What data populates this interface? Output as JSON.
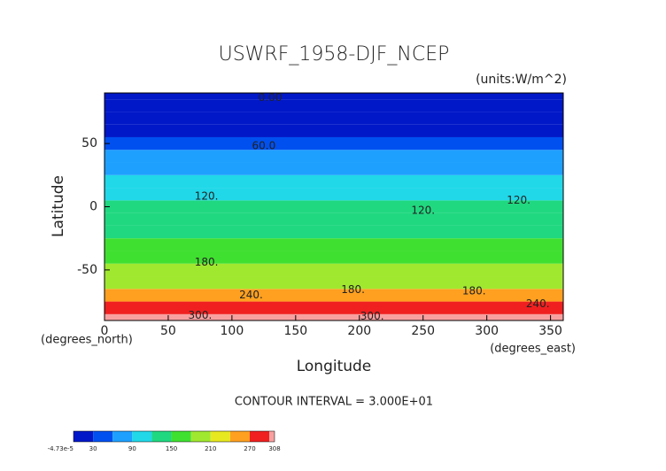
{
  "chart_data": {
    "type": "contour",
    "title": "USWRF_1958-DJF_NCEP",
    "units": "(units:W/m^2)",
    "xlabel": "Longitude",
    "xunit": "(degrees_east)",
    "ylabel": "Latitude",
    "yunit": "(degrees_north)",
    "xlim": [
      0,
      360
    ],
    "ylim": [
      -90,
      90
    ],
    "xticks": [
      0,
      50,
      100,
      150,
      200,
      250,
      300,
      350
    ],
    "yticks": [
      -50,
      0,
      50
    ],
    "field": {
      "lat": [
        -90,
        -80,
        -70,
        -60,
        -50,
        -40,
        -30,
        -20,
        -10,
        0,
        10,
        20,
        30,
        40,
        50,
        60,
        70,
        80,
        90
      ],
      "values": [
        305,
        290,
        250,
        200,
        180,
        165,
        150,
        140,
        125,
        120,
        115,
        100,
        80,
        60,
        45,
        25,
        10,
        5,
        0
      ]
    },
    "levels": [
      0,
      30,
      60,
      90,
      120,
      150,
      180,
      210,
      240,
      270,
      300
    ],
    "colors": [
      "#0018c8",
      "#0050f0",
      "#1ea0ff",
      "#20d8e8",
      "#20d880",
      "#40e030",
      "#a0e830",
      "#e8e820",
      "#ffa020",
      "#f02020",
      "#f8a0a0"
    ],
    "contour_labels": [
      {
        "text": "0.00",
        "x": 130,
        "y": 86
      },
      {
        "text": "60.0",
        "x": 125,
        "y": 48
      },
      {
        "text": "120.",
        "x": 80,
        "y": 8
      },
      {
        "text": "120.",
        "x": 250,
        "y": -3
      },
      {
        "text": "120.",
        "x": 325,
        "y": 5
      },
      {
        "text": "180.",
        "x": 80,
        "y": -44
      },
      {
        "text": "180.",
        "x": 195,
        "y": -66
      },
      {
        "text": "180.",
        "x": 290,
        "y": -67
      },
      {
        "text": "240.",
        "x": 115,
        "y": -70
      },
      {
        "text": "240.",
        "x": 340,
        "y": -77
      },
      {
        "text": "300.",
        "x": 75,
        "y": -86
      },
      {
        "text": "300.",
        "x": 210,
        "y": -87
      }
    ],
    "contour_interval": "CONTOUR INTERVAL = 3.000E+01",
    "colorbar_lim": [
      -4.73e-05,
      308
    ],
    "colorbar_ticks": [
      {
        "value": -4.73e-05,
        "label": "-4.73e-5"
      },
      30,
      90,
      150,
      210,
      270,
      308
    ]
  }
}
